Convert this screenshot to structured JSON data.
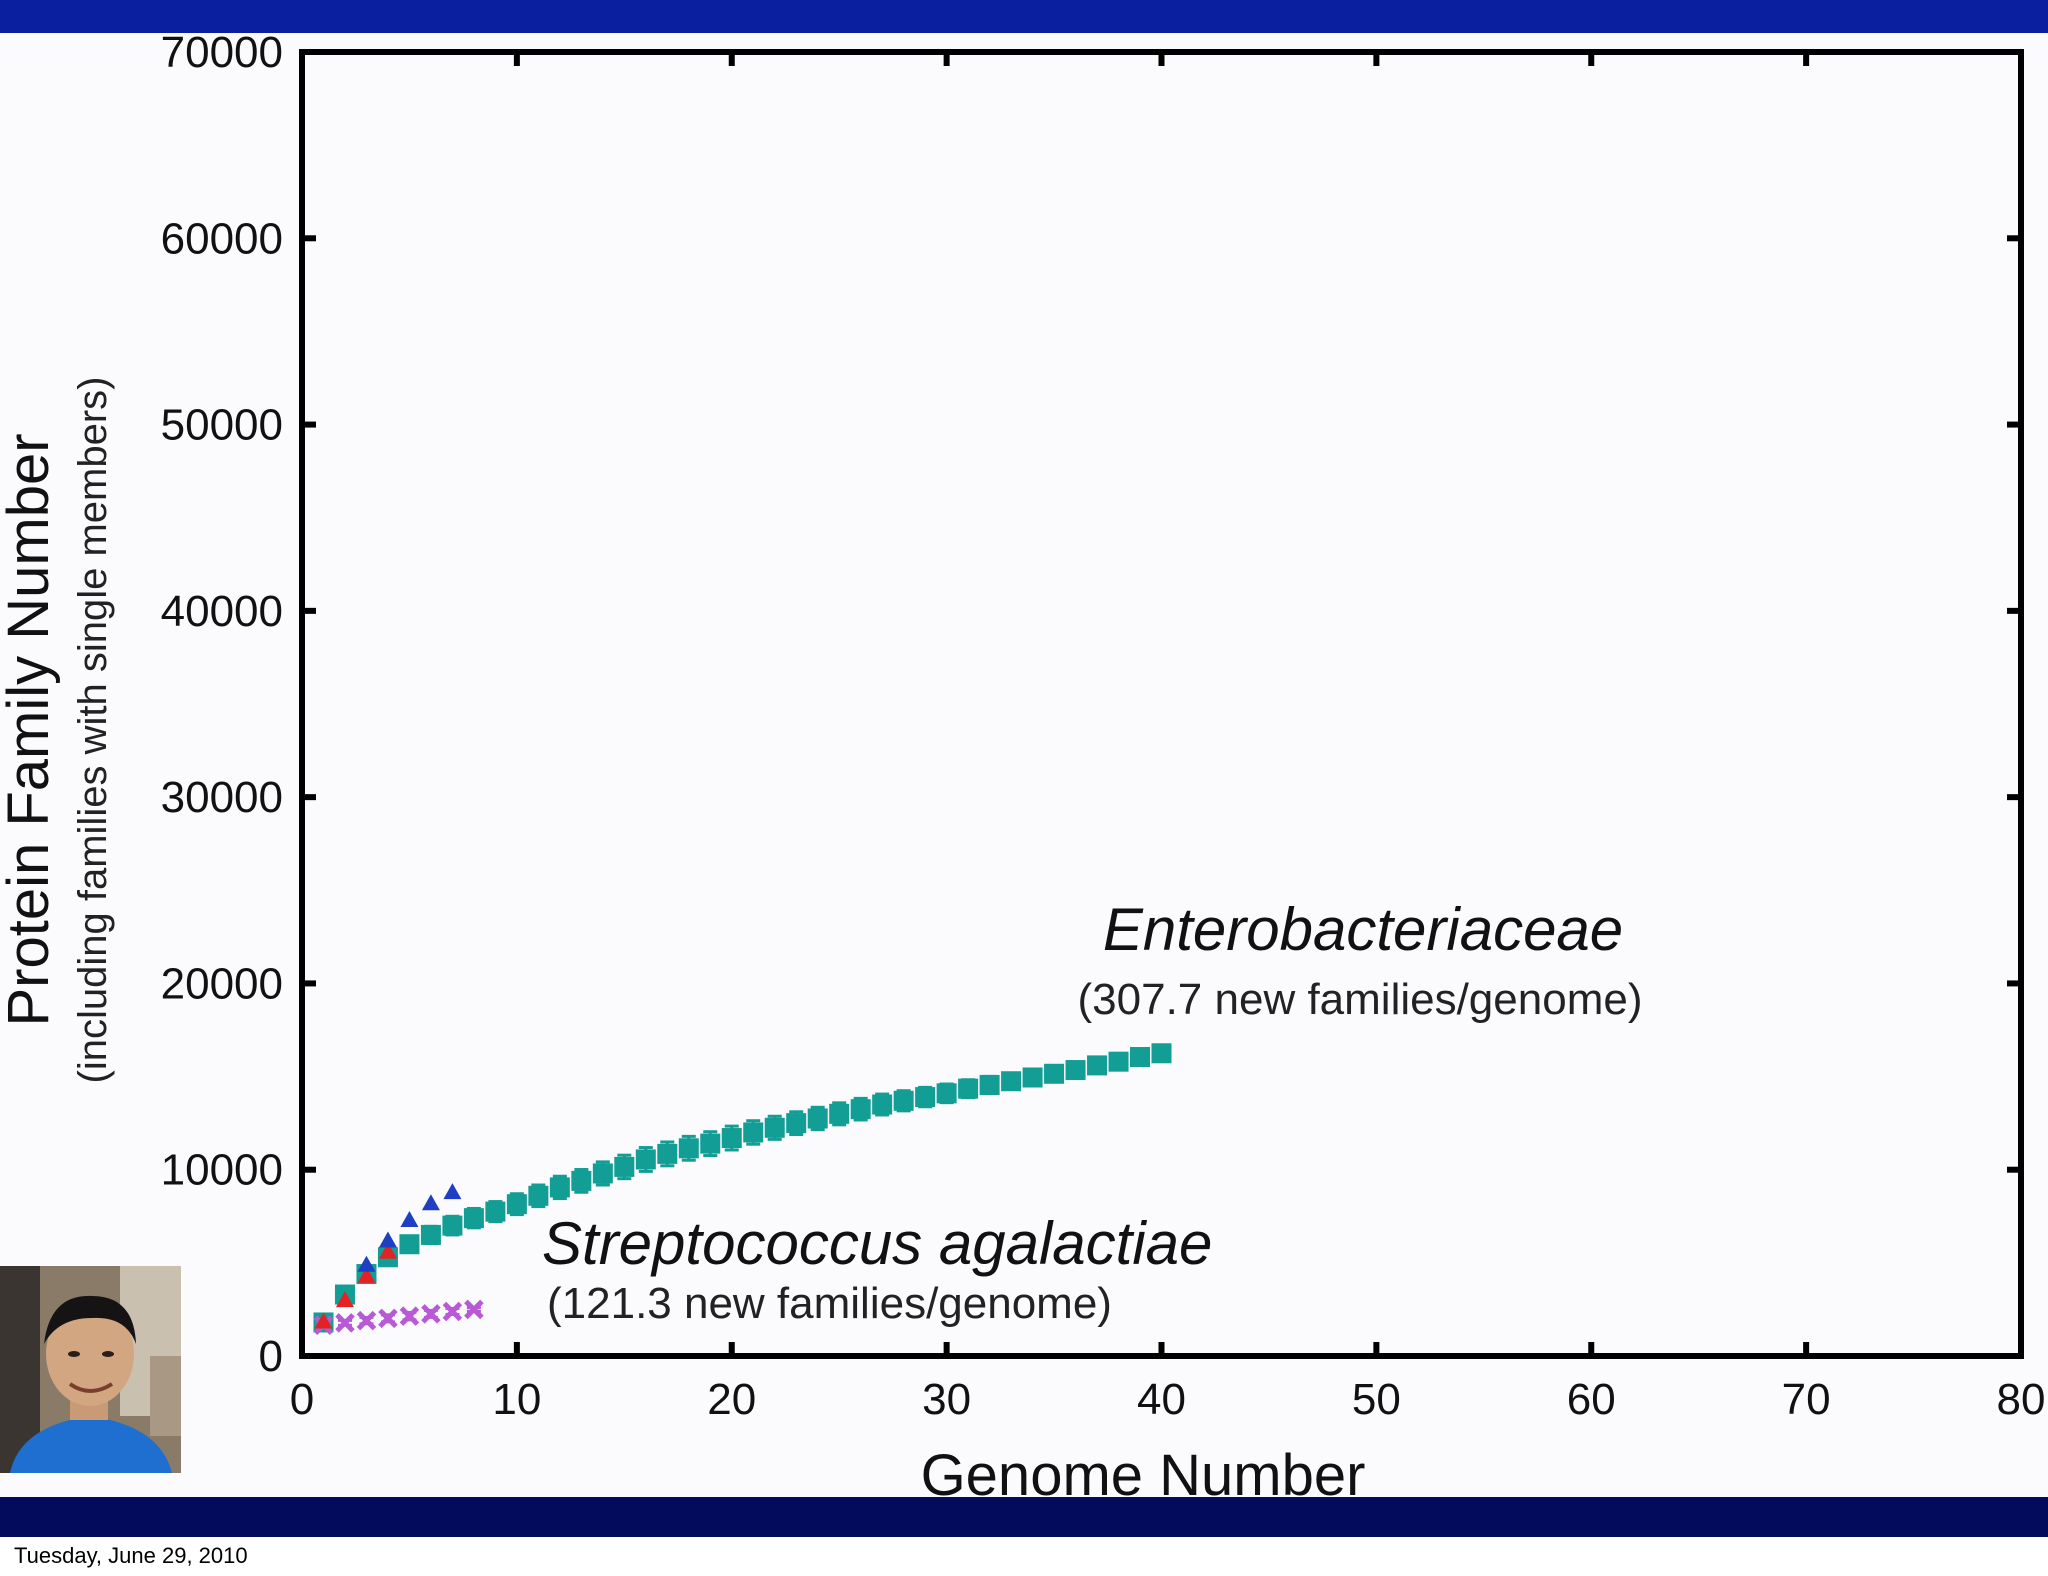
{
  "footer": {
    "date": "Tuesday, June 29, 2010"
  },
  "colors": {
    "top_bar": "#0a1fa0",
    "bottom_bar": "#020b5c",
    "enterobacteriaceae": "#129e94",
    "streptococcus": "#b85ad6",
    "red_series": "#e32323",
    "blue_series": "#1f3fc2"
  },
  "photo": {
    "icon": "presenter-photo-icon"
  },
  "chart_data": {
    "type": "scatter",
    "xlabel": "Genome Number",
    "ylabel": "Protein Family Number",
    "ylabel_sub": "(including families with single members)",
    "xlim": [
      0,
      80
    ],
    "ylim": [
      0,
      70000
    ],
    "x_ticks": [
      0,
      10,
      20,
      30,
      40,
      50,
      60,
      70,
      80
    ],
    "y_ticks": [
      0,
      10000,
      20000,
      30000,
      40000,
      50000,
      60000,
      70000
    ],
    "grid": false,
    "annotations": [
      {
        "name": "Enterobacteriaceae",
        "rate": "(307.7 new families/genome)",
        "series": "Enterobacteriaceae"
      },
      {
        "name": "Streptococcus agalactiae",
        "rate": "(121.3 new families/genome)",
        "series": "Streptococcus agalactiae"
      }
    ],
    "series": [
      {
        "name": "Enterobacteriaceae",
        "marker": "square",
        "color": "#129e94",
        "x": [
          1,
          2,
          3,
          4,
          5,
          6,
          7,
          8,
          9,
          10,
          11,
          12,
          13,
          14,
          15,
          16,
          17,
          18,
          19,
          20,
          21,
          22,
          23,
          24,
          25,
          26,
          27,
          28,
          29,
          30,
          31,
          32,
          33,
          34,
          35,
          36,
          37,
          38,
          39,
          40
        ],
        "y": [
          1800,
          3300,
          4400,
          5300,
          6000,
          6500,
          7000,
          7400,
          7750,
          8150,
          8600,
          9050,
          9400,
          9800,
          10150,
          10550,
          10850,
          11150,
          11400,
          11700,
          12000,
          12250,
          12500,
          12750,
          13000,
          13250,
          13500,
          13700,
          13900,
          14100,
          14350,
          14550,
          14750,
          14950,
          15150,
          15350,
          15600,
          15800,
          16050,
          16250
        ],
        "error": [
          120,
          220,
          300,
          360,
          420,
          460,
          500,
          520,
          540,
          560,
          580,
          600,
          610,
          620,
          630,
          640,
          640,
          640,
          640,
          640,
          630,
          620,
          610,
          600,
          590,
          580,
          560,
          540,
          520,
          500,
          480,
          460,
          430,
          400,
          370,
          340,
          300,
          260,
          200,
          120
        ]
      },
      {
        "name": "Streptococcus agalactiae",
        "marker": "x",
        "color": "#b85ad6",
        "x": [
          1,
          2,
          3,
          4,
          5,
          6,
          7,
          8
        ],
        "y": [
          1650,
          1780,
          1900,
          2020,
          2140,
          2260,
          2390,
          2500
        ],
        "error": [
          80,
          130,
          170,
          190,
          200,
          190,
          160,
          100
        ]
      },
      {
        "marker": "triangle",
        "color": "#e32323",
        "x": [
          1,
          2,
          3,
          4
        ],
        "y": [
          1850,
          3000,
          4300,
          5600
        ],
        "error": [
          0,
          0,
          0,
          0
        ]
      },
      {
        "marker": "triangle",
        "color": "#1f3fc2",
        "x": [
          3,
          4,
          5,
          6,
          7
        ],
        "y": [
          4900,
          6200,
          7300,
          8200,
          8800
        ],
        "error": [
          0,
          0,
          0,
          0,
          0
        ]
      }
    ]
  }
}
